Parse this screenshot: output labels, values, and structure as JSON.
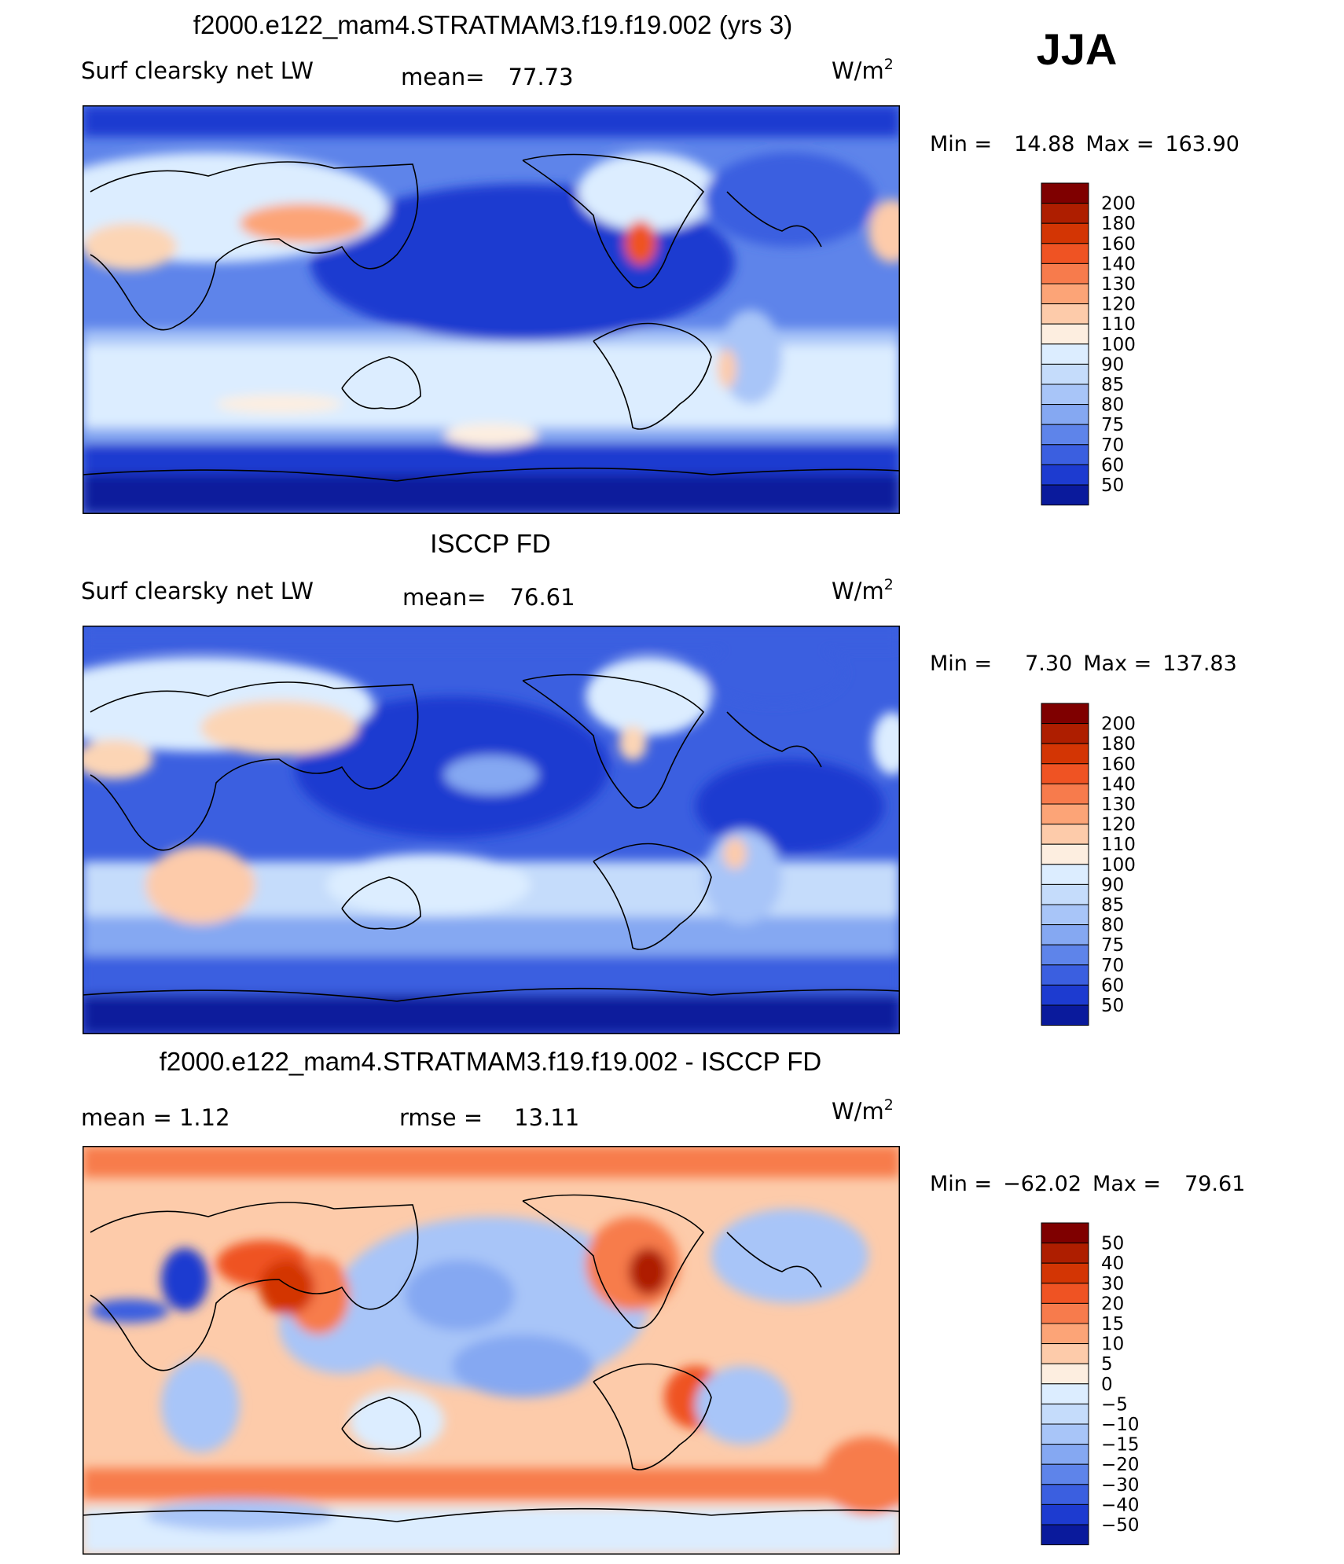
{
  "season": "JJA",
  "panels": [
    {
      "id": "model",
      "title": "f2000.e122_mam4.STRATMAM3.f19.f19.002 (yrs 3)",
      "left_label": "Surf clearsky net LW",
      "mid_label": "mean=",
      "mid_value": "77.73",
      "units": "W/m",
      "units_sup": "2",
      "stats": {
        "min_label": "Min =",
        "min": "14.88",
        "max_label": "Max =",
        "max": "163.90"
      },
      "levels": [
        "200",
        "180",
        "160",
        "140",
        "130",
        "120",
        "110",
        "100",
        "90",
        "85",
        "80",
        "75",
        "70",
        "60",
        "50"
      ],
      "colors": [
        "#7f0000",
        "#ae1e00",
        "#d33504",
        "#ef5323",
        "#f77b4c",
        "#fca477",
        "#fdcbaa",
        "#fdeee0",
        "#dcedff",
        "#c5dcfb",
        "#a8c5f8",
        "#85a8f2",
        "#5e84ea",
        "#3b5fe0",
        "#1d3bd0",
        "#0a1a9c"
      ]
    },
    {
      "id": "obs",
      "title": "ISCCP FD",
      "left_label": "Surf clearsky net LW",
      "mid_label": "mean=",
      "mid_value": "76.61",
      "units": "W/m",
      "units_sup": "2",
      "stats": {
        "min_label": "Min =",
        "min": "7.30",
        "max_label": "Max =",
        "max": "137.83"
      },
      "levels": [
        "200",
        "180",
        "160",
        "140",
        "130",
        "120",
        "110",
        "100",
        "90",
        "85",
        "80",
        "75",
        "70",
        "60",
        "50"
      ],
      "colors": [
        "#7f0000",
        "#ae1e00",
        "#d33504",
        "#ef5323",
        "#f77b4c",
        "#fca477",
        "#fdcbaa",
        "#fdeee0",
        "#dcedff",
        "#c5dcfb",
        "#a8c5f8",
        "#85a8f2",
        "#5e84ea",
        "#3b5fe0",
        "#1d3bd0",
        "#0a1a9c"
      ]
    },
    {
      "id": "diff",
      "title": "f2000.e122_mam4.STRATMAM3.f19.f19.002 - ISCCP FD",
      "left_label": "mean = 1.12",
      "mid_label": "rmse =",
      "mid_value": "13.11",
      "units": "W/m",
      "units_sup": "2",
      "stats": {
        "min_label": "Min =",
        "min": "−62.02",
        "max_label": "Max =",
        "max": "79.61"
      },
      "levels": [
        "50",
        "40",
        "30",
        "20",
        "15",
        "10",
        "5",
        "0",
        "−5",
        "−10",
        "−15",
        "−20",
        "−30",
        "−40",
        "−50"
      ],
      "colors": [
        "#7f0000",
        "#ae1e00",
        "#d33504",
        "#ef5323",
        "#f77b4c",
        "#fca477",
        "#fdcbaa",
        "#fdeee0",
        "#dcedff",
        "#c5dcfb",
        "#a8c5f8",
        "#85a8f2",
        "#5e84ea",
        "#3b5fe0",
        "#1d3bd0",
        "#0a1a9c"
      ]
    }
  ]
}
